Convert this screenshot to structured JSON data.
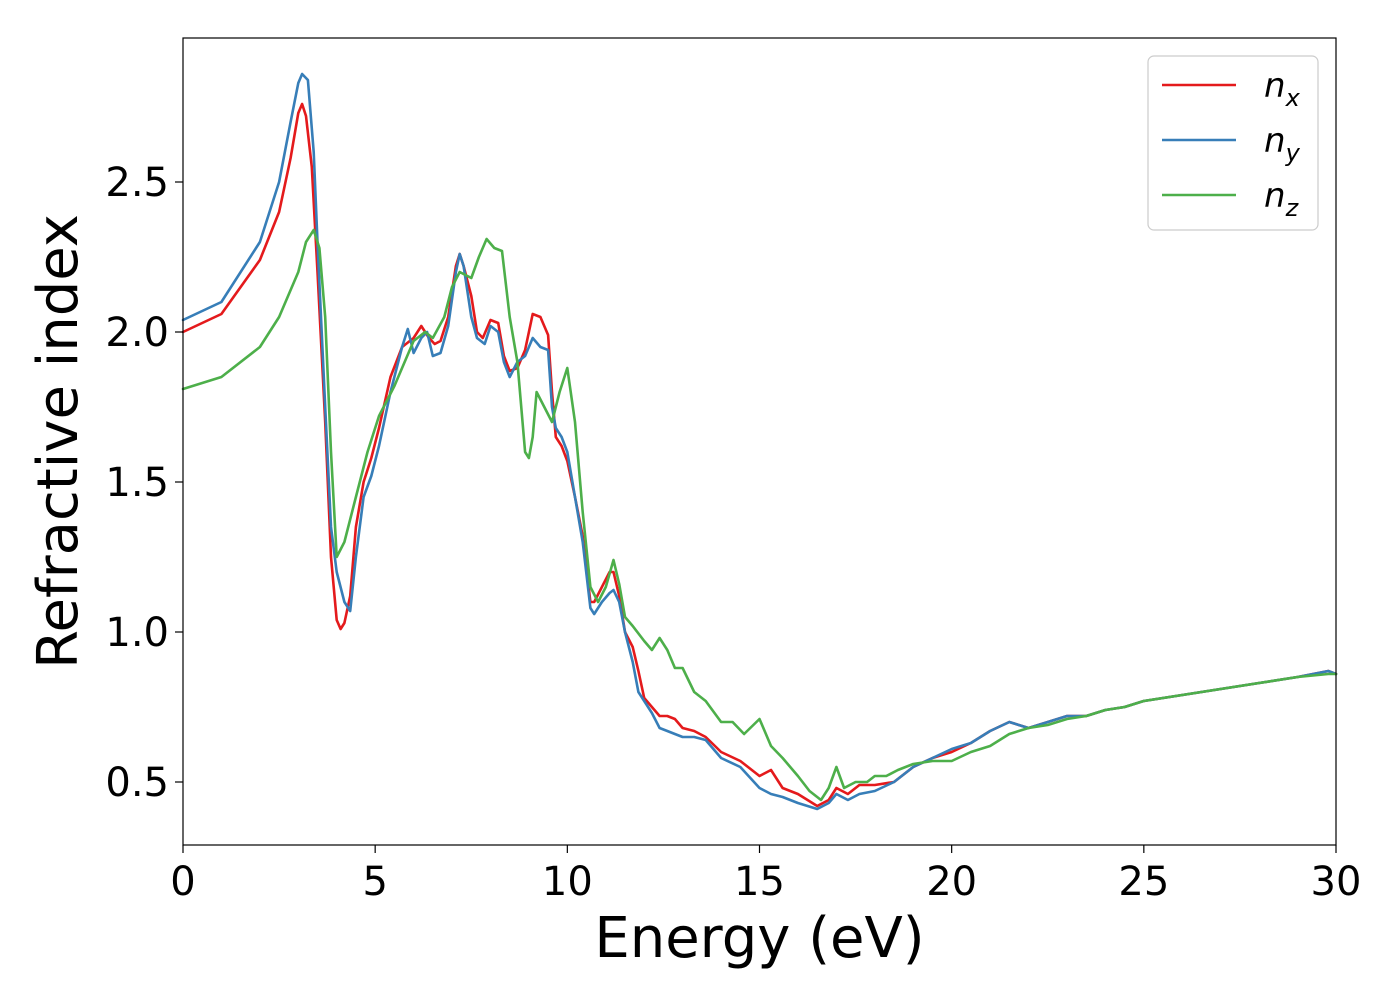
{
  "chart_data": {
    "type": "line",
    "title": "",
    "xlabel": "Energy (eV)",
    "ylabel": "Refractive index",
    "xlim": [
      0,
      30
    ],
    "ylim": [
      0.29,
      2.98
    ],
    "xticks": [
      0,
      5,
      10,
      15,
      20,
      25,
      30
    ],
    "yticks": [
      0.5,
      1.0,
      1.5,
      2.0,
      2.5
    ],
    "xtick_labels": [
      "0",
      "5",
      "10",
      "15",
      "20",
      "25",
      "30"
    ],
    "ytick_labels": [
      "0.5",
      "1.0",
      "1.5",
      "2.0",
      "2.5"
    ],
    "grid": false,
    "legend_position": "top-right",
    "series": [
      {
        "name": "n",
        "subscript": "x",
        "color": "#e41a1c",
        "x": [
          0,
          1,
          2,
          2.5,
          2.8,
          3.0,
          3.1,
          3.2,
          3.35,
          3.5,
          3.7,
          3.85,
          4.0,
          4.1,
          4.2,
          4.35,
          4.5,
          4.7,
          4.9,
          5.1,
          5.4,
          5.7,
          6.0,
          6.2,
          6.4,
          6.55,
          6.7,
          6.9,
          7.1,
          7.2,
          7.3,
          7.5,
          7.65,
          7.8,
          8.0,
          8.2,
          8.35,
          8.5,
          8.7,
          8.9,
          9.0,
          9.1,
          9.3,
          9.5,
          9.6,
          9.7,
          9.85,
          10.0,
          10.2,
          10.4,
          10.6,
          10.7,
          10.9,
          11.1,
          11.2,
          11.35,
          11.5,
          11.7,
          11.85,
          12.0,
          12.2,
          12.4,
          12.6,
          12.8,
          13.0,
          13.3,
          13.6,
          14.0,
          14.5,
          15.0,
          15.3,
          15.6,
          16.0,
          16.5,
          16.8,
          17.0,
          17.3,
          17.6,
          18.0,
          18.5,
          19.0,
          19.5,
          20.0,
          20.5,
          21.0,
          21.5,
          22.0,
          22.5,
          23.0,
          23.5,
          24.0,
          24.5,
          25.0,
          26.0,
          27.0,
          28.0,
          29.0,
          29.8,
          30.0
        ],
        "y": [
          2.0,
          2.06,
          2.24,
          2.4,
          2.58,
          2.73,
          2.76,
          2.72,
          2.55,
          2.2,
          1.7,
          1.25,
          1.04,
          1.01,
          1.03,
          1.12,
          1.35,
          1.5,
          1.58,
          1.68,
          1.85,
          1.95,
          1.98,
          2.02,
          1.98,
          1.96,
          1.97,
          2.05,
          2.22,
          2.26,
          2.22,
          2.12,
          2.0,
          1.98,
          2.04,
          2.03,
          1.92,
          1.87,
          1.88,
          1.94,
          2.0,
          2.06,
          2.05,
          1.99,
          1.8,
          1.65,
          1.62,
          1.57,
          1.45,
          1.32,
          1.1,
          1.1,
          1.15,
          1.2,
          1.2,
          1.12,
          1.0,
          0.95,
          0.87,
          0.78,
          0.75,
          0.72,
          0.72,
          0.71,
          0.68,
          0.67,
          0.65,
          0.6,
          0.57,
          0.52,
          0.54,
          0.48,
          0.46,
          0.42,
          0.44,
          0.48,
          0.46,
          0.49,
          0.49,
          0.5,
          0.55,
          0.58,
          0.6,
          0.63,
          0.67,
          0.7,
          0.68,
          0.7,
          0.72,
          0.72,
          0.74,
          0.75,
          0.77,
          0.79,
          0.81,
          0.83,
          0.85,
          0.87,
          0.86
        ]
      },
      {
        "name": "n",
        "subscript": "y",
        "color": "#377eb8",
        "x": [
          0,
          1,
          2,
          2.5,
          2.8,
          3.0,
          3.1,
          3.25,
          3.4,
          3.5,
          3.7,
          3.85,
          4.0,
          4.2,
          4.35,
          4.5,
          4.7,
          4.9,
          5.1,
          5.4,
          5.7,
          5.85,
          6.0,
          6.2,
          6.35,
          6.5,
          6.7,
          6.9,
          7.1,
          7.2,
          7.3,
          7.5,
          7.65,
          7.85,
          8.0,
          8.2,
          8.35,
          8.5,
          8.7,
          8.9,
          9.1,
          9.3,
          9.5,
          9.6,
          9.7,
          9.85,
          10.0,
          10.2,
          10.4,
          10.6,
          10.7,
          10.9,
          11.1,
          11.2,
          11.35,
          11.5,
          11.7,
          11.85,
          12.0,
          12.2,
          12.4,
          12.6,
          12.8,
          13.0,
          13.3,
          13.6,
          14.0,
          14.5,
          15.0,
          15.3,
          15.6,
          16.0,
          16.5,
          16.8,
          17.0,
          17.3,
          17.6,
          18.0,
          18.5,
          19.0,
          19.5,
          20.0,
          20.5,
          21.0,
          21.5,
          22.0,
          22.5,
          23.0,
          23.5,
          24.0,
          24.5,
          25.0,
          26.0,
          27.0,
          28.0,
          29.0,
          29.8,
          30.0
        ],
        "y": [
          2.04,
          2.1,
          2.3,
          2.5,
          2.7,
          2.83,
          2.86,
          2.84,
          2.6,
          2.3,
          1.75,
          1.35,
          1.2,
          1.1,
          1.07,
          1.25,
          1.45,
          1.52,
          1.62,
          1.8,
          1.95,
          2.01,
          1.93,
          1.98,
          2.0,
          1.92,
          1.93,
          2.02,
          2.2,
          2.26,
          2.22,
          2.05,
          1.98,
          1.96,
          2.02,
          2.0,
          1.9,
          1.85,
          1.9,
          1.92,
          1.98,
          1.95,
          1.94,
          1.75,
          1.68,
          1.65,
          1.6,
          1.45,
          1.3,
          1.08,
          1.06,
          1.1,
          1.13,
          1.14,
          1.1,
          1.0,
          0.9,
          0.8,
          0.77,
          0.73,
          0.68,
          0.67,
          0.66,
          0.65,
          0.65,
          0.64,
          0.58,
          0.55,
          0.48,
          0.46,
          0.45,
          0.43,
          0.41,
          0.43,
          0.46,
          0.44,
          0.46,
          0.47,
          0.5,
          0.55,
          0.58,
          0.61,
          0.63,
          0.67,
          0.7,
          0.68,
          0.7,
          0.72,
          0.72,
          0.74,
          0.75,
          0.77,
          0.79,
          0.81,
          0.83,
          0.85,
          0.87,
          0.86
        ]
      },
      {
        "name": "n",
        "subscript": "z",
        "color": "#4daf4a",
        "x": [
          0,
          1,
          2,
          2.5,
          3.0,
          3.2,
          3.4,
          3.55,
          3.7,
          3.85,
          4.0,
          4.2,
          4.5,
          4.8,
          5.1,
          5.5,
          6.0,
          6.3,
          6.5,
          6.8,
          7.0,
          7.2,
          7.5,
          7.7,
          7.9,
          8.1,
          8.3,
          8.5,
          8.7,
          8.9,
          9.0,
          9.1,
          9.2,
          9.4,
          9.6,
          9.8,
          10.0,
          10.2,
          10.4,
          10.6,
          10.8,
          11.0,
          11.2,
          11.35,
          11.5,
          11.7,
          12.0,
          12.2,
          12.4,
          12.6,
          12.8,
          13.0,
          13.3,
          13.6,
          14.0,
          14.3,
          14.6,
          15.0,
          15.3,
          15.6,
          16.0,
          16.3,
          16.6,
          16.8,
          17.0,
          17.2,
          17.5,
          17.8,
          18.0,
          18.3,
          18.6,
          19.0,
          19.5,
          20.0,
          20.5,
          21.0,
          21.5,
          22.0,
          22.5,
          23.0,
          23.5,
          24.0,
          24.5,
          25.0,
          26.0,
          27.0,
          28.0,
          29.0,
          29.8,
          30.0
        ],
        "y": [
          1.81,
          1.85,
          1.95,
          2.05,
          2.2,
          2.3,
          2.34,
          2.28,
          2.05,
          1.6,
          1.25,
          1.3,
          1.45,
          1.6,
          1.72,
          1.82,
          1.97,
          2.0,
          1.98,
          2.05,
          2.15,
          2.2,
          2.18,
          2.25,
          2.31,
          2.28,
          2.27,
          2.05,
          1.9,
          1.6,
          1.58,
          1.65,
          1.8,
          1.75,
          1.7,
          1.8,
          1.88,
          1.7,
          1.4,
          1.15,
          1.1,
          1.15,
          1.24,
          1.16,
          1.05,
          1.02,
          0.97,
          0.94,
          0.98,
          0.94,
          0.88,
          0.88,
          0.8,
          0.77,
          0.7,
          0.7,
          0.66,
          0.71,
          0.62,
          0.58,
          0.52,
          0.47,
          0.44,
          0.48,
          0.55,
          0.48,
          0.5,
          0.5,
          0.52,
          0.52,
          0.54,
          0.56,
          0.57,
          0.57,
          0.6,
          0.62,
          0.66,
          0.68,
          0.69,
          0.71,
          0.72,
          0.74,
          0.75,
          0.77,
          0.79,
          0.81,
          0.83,
          0.85,
          0.86,
          0.86
        ]
      }
    ]
  }
}
